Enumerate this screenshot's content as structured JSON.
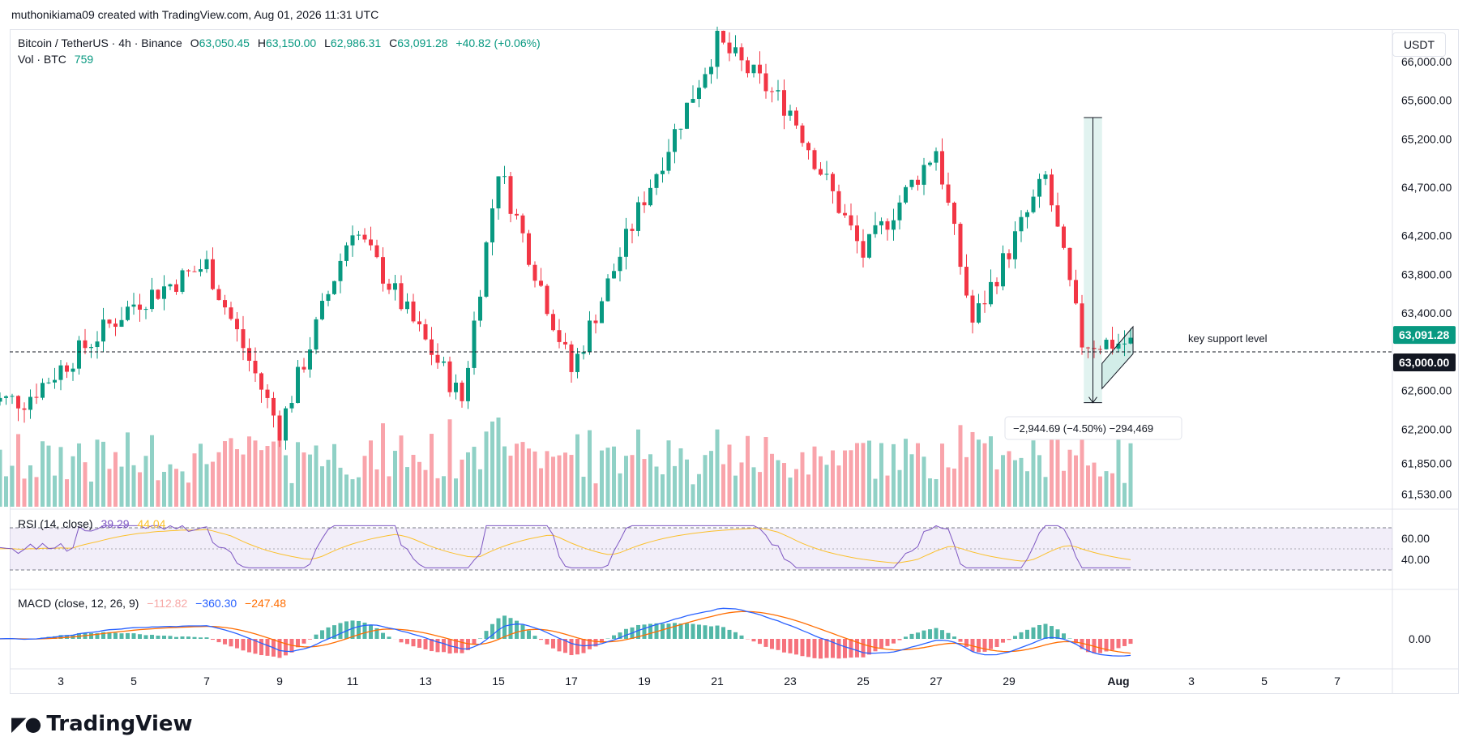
{
  "header": {
    "credit": "muthonikiama09 created with TradingView.com, Aug 01, 2026 11:31 UTC"
  },
  "legend": {
    "symbol": "Bitcoin / TetherUS · 4h · Binance",
    "o_label": "O",
    "o_value": "63,050.45",
    "h_label": "H",
    "h_value": "63,150.00",
    "l_label": "L",
    "l_value": "62,986.31",
    "c_label": "C",
    "c_value": "63,091.28",
    "change": "+40.82 (+0.06%)",
    "vol_label": "Vol · BTC",
    "vol_value": "759"
  },
  "rsi_legend": {
    "label": "RSI (14, close)",
    "value1": "39.29",
    "value2": "44.04"
  },
  "macd_legend": {
    "label": "MACD (close, 12, 26, 9)",
    "value1": "−112.82",
    "value2": "−360.30",
    "value3": "−247.48"
  },
  "unit": "USDT",
  "price_axis": [
    "66,000.00",
    "65,600.00",
    "65,200.00",
    "64,700.00",
    "64,200.00",
    "63,800.00",
    "63,400.00",
    "62,600.00",
    "62,200.00",
    "61,850.00",
    "61,530.00"
  ],
  "rsi_axis": [
    "60.00",
    "40.00"
  ],
  "macd_axis": [
    "0.00"
  ],
  "time_axis": [
    "3",
    "5",
    "7",
    "9",
    "11",
    "13",
    "15",
    "17",
    "19",
    "21",
    "23",
    "25",
    "27",
    "29",
    "Aug",
    "3",
    "5",
    "7"
  ],
  "current_price_label": "63,091.28",
  "support_price_label": "63,000.00",
  "support_annotation": "key support level",
  "measure_label": "−2,944.69 (−4.50%) −294,469",
  "brand": "TradingView",
  "colors": {
    "up": "#089981",
    "down": "#f23645",
    "rsi": "#7e57c2",
    "rsi_ma": "#fbc02d",
    "macd": "#2962ff",
    "signal": "#ff6d00"
  },
  "chart_data": {
    "type": "candlestick",
    "title": "Bitcoin / TetherUS · 4h · Binance",
    "x_axis": "date (Jul 2 – Aug 7, 2026), 4h candles",
    "y_axis": "price (USDT)",
    "ylim": [
      61400,
      66300
    ],
    "key_points": [
      {
        "date": "Jul 2",
        "close": 62500
      },
      {
        "date": "Jul 5",
        "close": 63500
      },
      {
        "date": "Jul 7",
        "close": 63900
      },
      {
        "date": "Jul 9",
        "close": 62200
      },
      {
        "date": "Jul 11",
        "close": 64300
      },
      {
        "date": "Jul 13",
        "close": 63100
      },
      {
        "date": "Jul 14",
        "close": 62500
      },
      {
        "date": "Jul 15",
        "close": 64900
      },
      {
        "date": "Jul 17",
        "close": 62800
      },
      {
        "date": "Jul 19",
        "close": 64600
      },
      {
        "date": "Jul 21",
        "close": 66200
      },
      {
        "date": "Jul 23",
        "close": 65500
      },
      {
        "date": "Jul 25",
        "close": 64000
      },
      {
        "date": "Jul 27",
        "close": 65100
      },
      {
        "date": "Jul 28",
        "close": 63300
      },
      {
        "date": "Jul 30",
        "close": 64800
      },
      {
        "date": "Jul 31",
        "close": 63100
      },
      {
        "date": "Aug 1",
        "close": 63091.28
      }
    ],
    "support_level": 63000,
    "measure": {
      "from": 65420,
      "to": 62475,
      "change": -2944.69,
      "pct": -4.5
    }
  }
}
